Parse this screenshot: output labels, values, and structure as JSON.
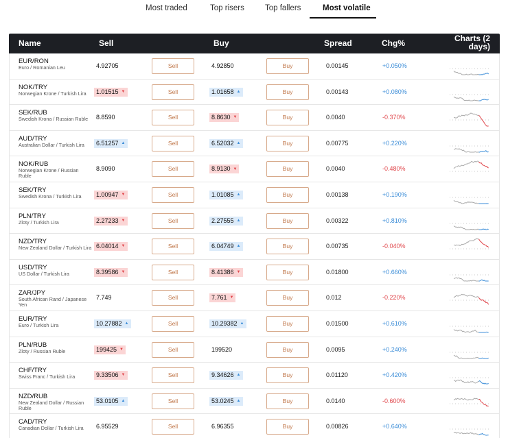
{
  "tabs": [
    {
      "label": "Most traded",
      "active": false
    },
    {
      "label": "Top risers",
      "active": false
    },
    {
      "label": "Top fallers",
      "active": false
    },
    {
      "label": "Most volatile",
      "active": true
    }
  ],
  "columns": {
    "name": "Name",
    "sell": "Sell",
    "buy": "Buy",
    "spread": "Spread",
    "chg": "Chg%",
    "charts": "Charts (2 days)"
  },
  "buttons": {
    "sell": "Sell",
    "buy": "Buy"
  },
  "colors": {
    "positive": "#3d8ed8",
    "negative": "#e0474c",
    "button_border": "#d7a98a",
    "header_bg": "#1d1f24"
  },
  "rows": [
    {
      "code": "EUR/RON",
      "desc": "Euro / Romanian Leu",
      "sell": "4.92705",
      "sell_dir": "flat",
      "buy": "4.92850",
      "buy_dir": "flat",
      "spread": "0.00145",
      "chg": "+0.050%",
      "trend": "up"
    },
    {
      "code": "NOK/TRY",
      "desc": "Norwegian Krone / Turkish Lira",
      "sell": "1.01515",
      "sell_dir": "down",
      "buy": "1.01658",
      "buy_dir": "up",
      "spread": "0.00143",
      "chg": "+0.080%",
      "trend": "up"
    },
    {
      "code": "SEK/RUB",
      "desc": "Swedish Krona / Russian Ruble",
      "sell": "8.8590",
      "sell_dir": "flat",
      "buy": "8.8630",
      "buy_dir": "down",
      "spread": "0.0040",
      "chg": "-0.370%",
      "trend": "down"
    },
    {
      "code": "AUD/TRY",
      "desc": "Australian Dollar / Turkish Lira",
      "sell": "6.51257",
      "sell_dir": "up",
      "buy": "6.52032",
      "buy_dir": "up",
      "spread": "0.00775",
      "chg": "+0.220%",
      "trend": "up"
    },
    {
      "code": "NOK/RUB",
      "desc": "Norwegian Krone / Russian Ruble",
      "sell": "8.9090",
      "sell_dir": "flat",
      "buy": "8.9130",
      "buy_dir": "down",
      "spread": "0.0040",
      "chg": "-0.480%",
      "trend": "down"
    },
    {
      "code": "SEK/TRY",
      "desc": "Swedish Krona / Turkish Lira",
      "sell": "1.00947",
      "sell_dir": "down",
      "buy": "1.01085",
      "buy_dir": "up",
      "spread": "0.00138",
      "chg": "+0.190%",
      "trend": "up"
    },
    {
      "code": "PLN/TRY",
      "desc": "Zloty / Turkish Lira",
      "sell": "2.27233",
      "sell_dir": "down",
      "buy": "2.27555",
      "buy_dir": "up",
      "spread": "0.00322",
      "chg": "+0.810%",
      "trend": "up"
    },
    {
      "code": "NZD/TRY",
      "desc": "New Zealand Dollar / Turkish Lira",
      "sell": "6.04014",
      "sell_dir": "down",
      "buy": "6.04749",
      "buy_dir": "up",
      "spread": "0.00735",
      "chg": "-0.040%",
      "trend": "down"
    },
    {
      "code": "USD/TRY",
      "desc": "US Dollar / Turkish Lira",
      "sell": "8.39586",
      "sell_dir": "down",
      "buy": "8.41386",
      "buy_dir": "down",
      "spread": "0.01800",
      "chg": "+0.660%",
      "trend": "up"
    },
    {
      "code": "ZAR/JPY",
      "desc": "South African Rand / Japanese Yen",
      "sell": "7.749",
      "sell_dir": "flat",
      "buy": "7.761",
      "buy_dir": "down",
      "spread": "0.012",
      "chg": "-0.220%",
      "trend": "down"
    },
    {
      "code": "EUR/TRY",
      "desc": "Euro / Turkish Lira",
      "sell": "10.27882",
      "sell_dir": "up",
      "buy": "10.29382",
      "buy_dir": "up",
      "spread": "0.01500",
      "chg": "+0.610%",
      "trend": "up"
    },
    {
      "code": "PLN/RUB",
      "desc": "Zloty / Russian Ruble",
      "sell": "199425",
      "sell_dir": "down",
      "buy": "199520",
      "buy_dir": "flat",
      "spread": "0.0095",
      "chg": "+0.240%",
      "trend": "up"
    },
    {
      "code": "CHF/TRY",
      "desc": "Swiss Franc / Turkish Lira",
      "sell": "9.33506",
      "sell_dir": "down",
      "buy": "9.34626",
      "buy_dir": "up",
      "spread": "0.01120",
      "chg": "+0.420%",
      "trend": "up"
    },
    {
      "code": "NZD/RUB",
      "desc": "New Zealand Dollar / Russian Ruble",
      "sell": "53.0105",
      "sell_dir": "up",
      "buy": "53.0245",
      "buy_dir": "up",
      "spread": "0.0140",
      "chg": "-0.600%",
      "trend": "down"
    },
    {
      "code": "CAD/TRY",
      "desc": "Canadian Dollar / Turkish Lira",
      "sell": "6.95529",
      "sell_dir": "flat",
      "buy": "6.96355",
      "buy_dir": "flat",
      "spread": "0.00826",
      "chg": "+0.640%",
      "trend": "up"
    }
  ]
}
